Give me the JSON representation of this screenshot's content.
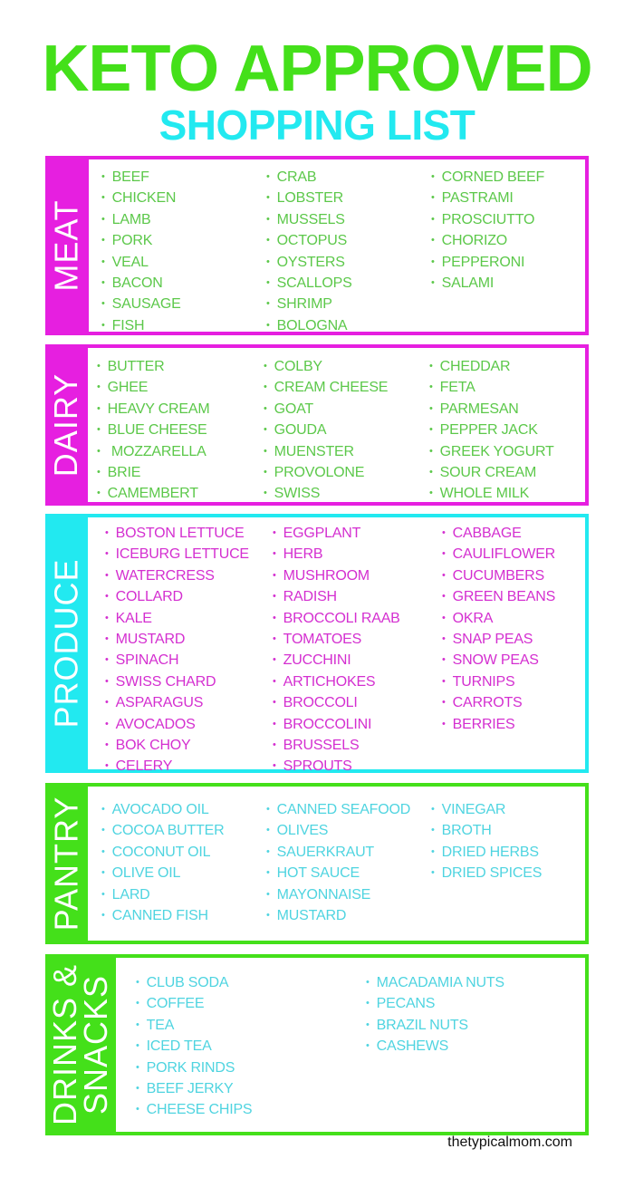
{
  "title": "KETO APPROVED",
  "subtitle": "SHOPPING LIST",
  "colors": {
    "green": "#44e01a",
    "cyan": "#22e9f0",
    "magenta": "#e61fe0",
    "item_green": "#5cc84a",
    "item_magenta": "#d42fd0",
    "item_cyan": "#4fd4e0"
  },
  "sections": [
    {
      "label": "MEAT",
      "columns": [
        [
          "BEEF",
          "CHICKEN",
          "LAMB",
          "PORK",
          "VEAL",
          "BACON",
          "SAUSAGE",
          "FISH"
        ],
        [
          "CRAB",
          "LOBSTER",
          "MUSSELS",
          "OCTOPUS",
          "OYSTERS",
          "SCALLOPS",
          "SHRIMP",
          "BOLOGNA"
        ],
        [
          "CORNED BEEF",
          "PASTRAMI",
          "PROSCIUTTO",
          "CHORIZO",
          "PEPPERONI",
          "SALAMI"
        ]
      ]
    },
    {
      "label": "DAIRY",
      "columns": [
        [
          "BUTTER",
          "GHEE",
          "HEAVY CREAM",
          "BLUE CHEESE",
          " MOZZARELLA",
          "BRIE",
          "CAMEMBERT"
        ],
        [
          "COLBY",
          "CREAM CHEESE",
          "GOAT",
          "GOUDA",
          "MUENSTER",
          "PROVOLONE",
          "SWISS"
        ],
        [
          "CHEDDAR",
          "FETA",
          "PARMESAN",
          "PEPPER JACK",
          "GREEK YOGURT",
          "SOUR CREAM",
          "WHOLE MILK"
        ]
      ]
    },
    {
      "label": "PRODUCE",
      "columns": [
        [
          "BOSTON LETTUCE",
          "ICEBURG LETTUCE",
          "WATERCRESS",
          "COLLARD",
          "KALE",
          "MUSTARD",
          "SPINACH",
          "SWISS CHARD",
          "ASPARAGUS",
          "AVOCADOS",
          "BOK CHOY",
          "CELERY"
        ],
        [
          "EGGPLANT",
          "HERB",
          "MUSHROOM",
          "RADISH",
          "BROCCOLI RAAB",
          "TOMATOES",
          "ZUCCHINI",
          "ARTICHOKES",
          "BROCCOLI",
          "BROCCOLINI",
          "BRUSSELS",
          "SPROUTS"
        ],
        [
          "CABBAGE",
          "CAULIFLOWER",
          "CUCUMBERS",
          "GREEN BEANS",
          "OKRA",
          "SNAP PEAS",
          "SNOW PEAS",
          "TURNIPS",
          "CARROTS",
          "BERRIES"
        ]
      ]
    },
    {
      "label": "PANTRY",
      "columns": [
        [
          "AVOCADO OIL",
          "COCOA BUTTER",
          "COCONUT OIL",
          "OLIVE OIL",
          "LARD",
          "CANNED FISH"
        ],
        [
          "CANNED SEAFOOD",
          "OLIVES",
          "SAUERKRAUT",
          "HOT SAUCE",
          "MAYONNAISE",
          "MUSTARD"
        ],
        [
          "VINEGAR",
          "BROTH",
          "DRIED HERBS",
          "DRIED SPICES"
        ]
      ]
    },
    {
      "label": "DRINKS & SNACKS",
      "label_lines": [
        "DRINKS &",
        "SNACKS"
      ],
      "columns": [
        [
          "CLUB SODA",
          "COFFEE",
          "TEA",
          "ICED TEA",
          "PORK RINDS",
          "BEEF JERKY",
          "CHEESE CHIPS"
        ],
        [
          "MACADAMIA NUTS",
          "PECANS",
          "BRAZIL NUTS",
          "CASHEWS"
        ]
      ]
    }
  ],
  "footer": "thetypicalmom.com"
}
